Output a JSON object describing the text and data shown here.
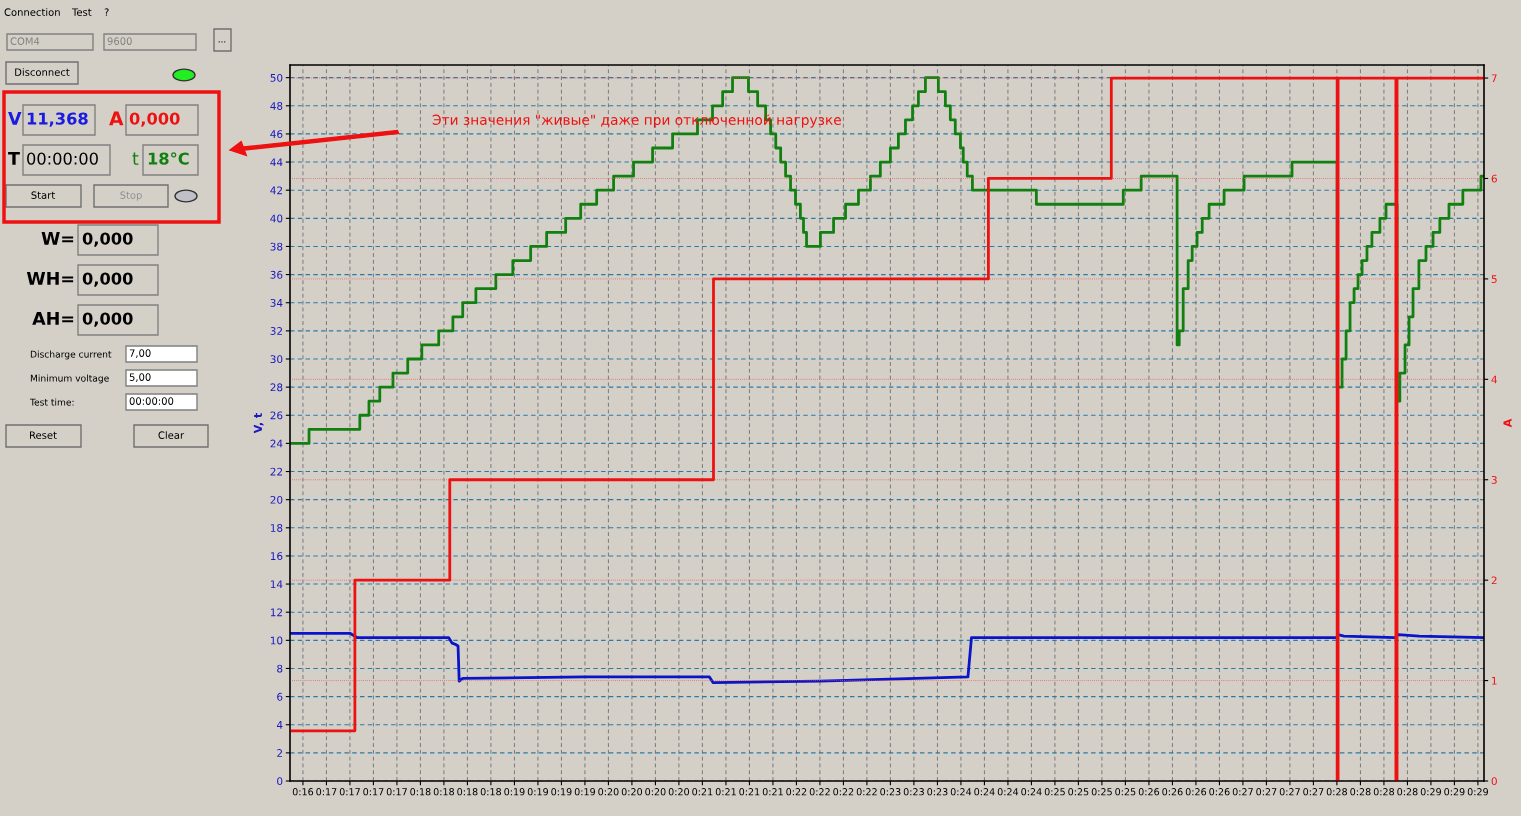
{
  "chart_data": {
    "type": "line",
    "ylabel": "V, t",
    "y2label": "A",
    "grid": true,
    "xlim": [
      0.26847,
      0.48802
    ],
    "xticks": [
      {
        "value": 0.27085,
        "label": "0:16"
      },
      {
        "value": 0.27517,
        "label": "0:17"
      },
      {
        "value": 0.27949,
        "label": "0:17"
      },
      {
        "value": 0.28381,
        "label": "0:17"
      },
      {
        "value": 0.28813,
        "label": "0:17"
      },
      {
        "value": 0.29245,
        "label": "0:18"
      },
      {
        "value": 0.29677,
        "label": "0:18"
      },
      {
        "value": 0.30109,
        "label": "0:18"
      },
      {
        "value": 0.30541,
        "label": "0:18"
      },
      {
        "value": 0.30974,
        "label": "0:19"
      },
      {
        "value": 0.31406,
        "label": "0:19"
      },
      {
        "value": 0.31838,
        "label": "0:19"
      },
      {
        "value": 0.3227,
        "label": "0:19"
      },
      {
        "value": 0.32702,
        "label": "0:20"
      },
      {
        "value": 0.33134,
        "label": "0:20"
      },
      {
        "value": 0.33566,
        "label": "0:20"
      },
      {
        "value": 0.33998,
        "label": "0:20"
      },
      {
        "value": 0.3443,
        "label": "0:21"
      },
      {
        "value": 0.34863,
        "label": "0:21"
      },
      {
        "value": 0.35295,
        "label": "0:21"
      },
      {
        "value": 0.35727,
        "label": "0:21"
      },
      {
        "value": 0.36159,
        "label": "0:22"
      },
      {
        "value": 0.36591,
        "label": "0:22"
      },
      {
        "value": 0.37023,
        "label": "0:22"
      },
      {
        "value": 0.37455,
        "label": "0:22"
      },
      {
        "value": 0.37887,
        "label": "0:23"
      },
      {
        "value": 0.38319,
        "label": "0:23"
      },
      {
        "value": 0.38752,
        "label": "0:23"
      },
      {
        "value": 0.39184,
        "label": "0:24"
      },
      {
        "value": 0.39616,
        "label": "0:24"
      },
      {
        "value": 0.40048,
        "label": "0:24"
      },
      {
        "value": 0.4048,
        "label": "0:24"
      },
      {
        "value": 0.40912,
        "label": "0:25"
      },
      {
        "value": 0.41344,
        "label": "0:25"
      },
      {
        "value": 0.41776,
        "label": "0:25"
      },
      {
        "value": 0.42208,
        "label": "0:25"
      },
      {
        "value": 0.42641,
        "label": "0:26"
      },
      {
        "value": 0.43073,
        "label": "0:26"
      },
      {
        "value": 0.43505,
        "label": "0:26"
      },
      {
        "value": 0.43937,
        "label": "0:26"
      },
      {
        "value": 0.44369,
        "label": "0:27"
      },
      {
        "value": 0.44801,
        "label": "0:27"
      },
      {
        "value": 0.45233,
        "label": "0:27"
      },
      {
        "value": 0.45665,
        "label": "0:27"
      },
      {
        "value": 0.46097,
        "label": "0:28"
      },
      {
        "value": 0.4653,
        "label": "0:28"
      },
      {
        "value": 0.46962,
        "label": "0:28"
      },
      {
        "value": 0.47394,
        "label": "0:28"
      },
      {
        "value": 0.47826,
        "label": "0:29"
      },
      {
        "value": 0.48258,
        "label": "0:29"
      },
      {
        "value": 0.4869,
        "label": "0:29"
      }
    ],
    "ylim": [
      0,
      50.9
    ],
    "yticks": [
      0,
      2,
      4,
      6,
      8,
      10,
      12,
      14,
      16,
      18,
      20,
      22,
      24,
      26,
      28,
      30,
      32,
      34,
      36,
      38,
      40,
      42,
      44,
      46,
      48,
      50
    ],
    "y2lim": [
      0,
      7.13
    ],
    "y2ticks": [
      0,
      1,
      2,
      3,
      4,
      5,
      6,
      7
    ],
    "series": [
      {
        "type": "step",
        "color": "#118011",
        "x": [
          0.26864,
          0.27197,
          0.28131,
          0.28299,
          0.28498,
          0.2874,
          0.29012,
          0.29271,
          0.29582,
          0.29842,
          0.30023,
          0.30265,
          0.30632,
          0.30944,
          0.31272,
          0.31566,
          0.31916,
          0.32192,
          0.32486,
          0.32797,
          0.33164,
          0.33514,
          0.33882,
          0.3434,
          0.34616,
          0.34802,
          0.34984,
          0.35277,
          0.35446,
          0.35593,
          0.35684,
          0.35779,
          0.35869,
          0.3596,
          0.36051,
          0.36142,
          0.36232,
          0.36289,
          0.36345,
          0.366,
          0.36842,
          0.37062,
          0.373,
          0.3752,
          0.37702,
          0.37887,
          0.38034,
          0.38164,
          0.38294,
          0.38402,
          0.38531,
          0.38769,
          0.38898,
          0.38989,
          0.3908,
          0.39175,
          0.39227,
          0.393,
          0.39395,
          0.40571,
          0.42169,
          0.42498,
          0.43159,
          0.43198,
          0.43271,
          0.43362,
          0.43436,
          0.43526,
          0.43621,
          0.43747,
          0.44023,
          0.4439,
          0.45272,
          0.46102,
          0.46192,
          0.46266,
          0.46339,
          0.46413,
          0.46486,
          0.4656,
          0.4665,
          0.46741,
          0.46888,
          0.47,
          0.47203,
          0.47255,
          0.4735,
          0.47424,
          0.47497,
          0.47605,
          0.47735,
          0.47865,
          0.4799,
          0.48158,
          0.48413,
          0.48746,
          0.48802
        ],
        "values": [
          24,
          25,
          26,
          27,
          28,
          29,
          30,
          31,
          32,
          33,
          34,
          35,
          36,
          37,
          38,
          39,
          40,
          41,
          42,
          43,
          44,
          45,
          46,
          47,
          48,
          49,
          50,
          49,
          48,
          47,
          46,
          45,
          44,
          43,
          42,
          41,
          40,
          39,
          38,
          39,
          40,
          41,
          42,
          43,
          44,
          45,
          46,
          47,
          48,
          49,
          50,
          49,
          48,
          47,
          46,
          45,
          44,
          43,
          42,
          41,
          42,
          43,
          31,
          32,
          35,
          37,
          38,
          39,
          40,
          41,
          42,
          43,
          44,
          28,
          30,
          32,
          34,
          35,
          36,
          37,
          38,
          39,
          40,
          41,
          27,
          29,
          31,
          33,
          35,
          37,
          38,
          39,
          40,
          41,
          42,
          43,
          43
        ]
      },
      {
        "type": "step",
        "axis": "y2",
        "color": "#ee1111",
        "x": [
          0.26864,
          0.2804,
          0.29785,
          0.34634,
          0.39689,
          0.41949,
          0.46102,
          0.46119,
          0.47182,
          0.47203,
          0.48802
        ],
        "values": [
          0.5,
          2,
          3,
          5,
          6,
          7,
          0,
          7,
          0,
          7,
          7
        ]
      },
      {
        "color": "#0a14c8",
        "x": [
          0.26864,
          0.27949,
          0.28079,
          0.29764,
          0.29829,
          0.29894,
          0.29937,
          0.29958,
          0.30023,
          0.3227,
          0.3456,
          0.34625,
          0.36591,
          0.39313,
          0.39378,
          0.46097,
          0.46119,
          0.46227,
          0.47177,
          0.47221,
          0.4761,
          0.48802
        ],
        "values": [
          10.5,
          10.5,
          10.2,
          10.2,
          9.8,
          9.7,
          9.6,
          7.1,
          7.3,
          7.4,
          7.4,
          7.0,
          7.1,
          7.4,
          10.2,
          10.2,
          10.4,
          10.3,
          10.2,
          10.4,
          10.3,
          10.2
        ]
      }
    ],
    "annotations": [
      "Эти значения \"живые\" даже при отключенной нагрузке",
      "Connection",
      "Test",
      "?",
      "COM4",
      "9600",
      "...",
      "Disconnect",
      "V",
      "11,368",
      "A",
      "0,000",
      "T",
      "00:00:00",
      "t",
      "18°C",
      "Start",
      "Stop",
      "W=",
      "0,000",
      "WH=",
      "0,000",
      "AH=",
      "0,000",
      "Discharge current",
      "7,00",
      "Minimum voltage",
      "5,00",
      "Test time:",
      "00:00:00",
      "Reset",
      "Clear"
    ]
  }
}
